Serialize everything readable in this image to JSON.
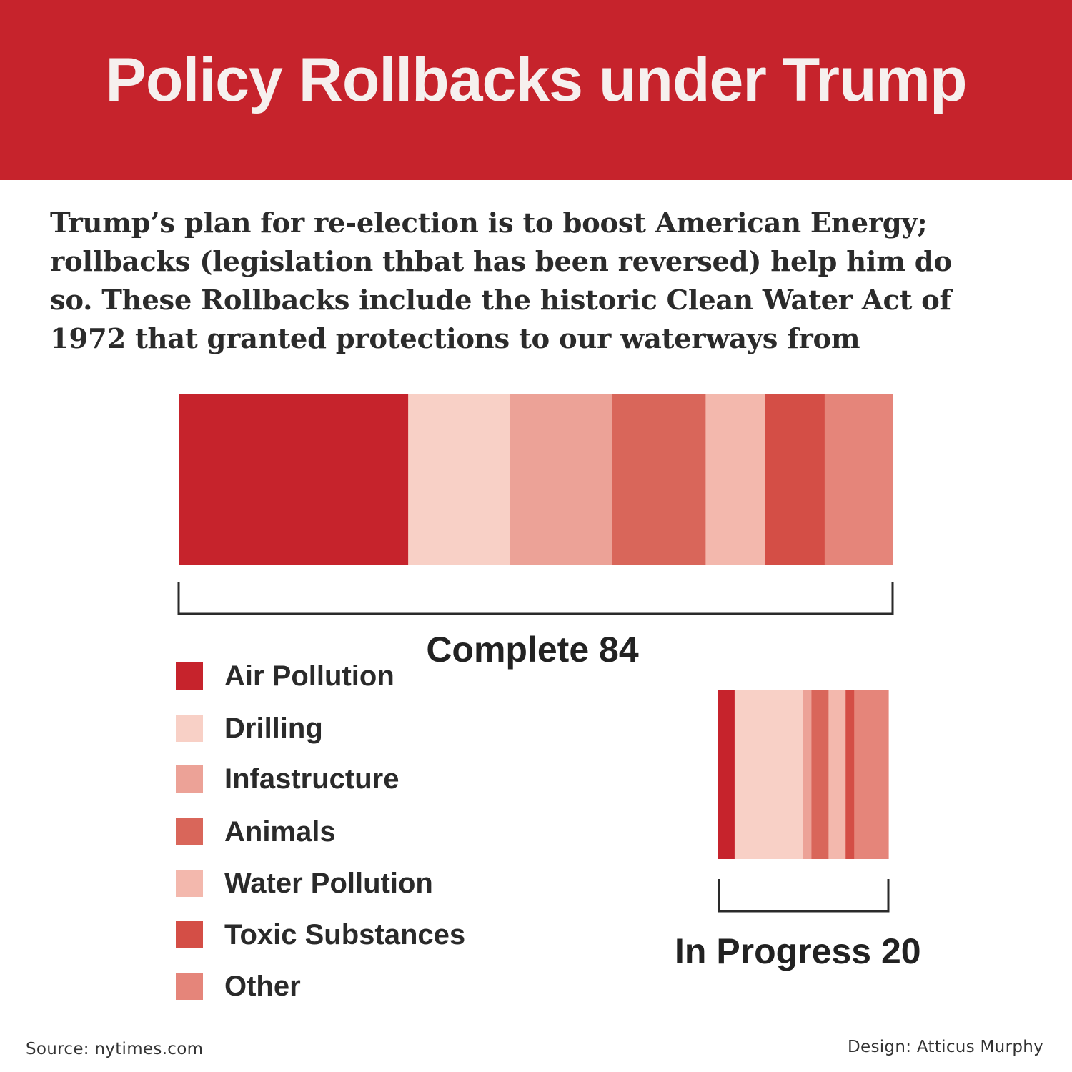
{
  "header": {
    "title": "Policy Rollbacks under Trump",
    "bg_color": "#c6232c"
  },
  "intro": {
    "text": "Trump’s plan for re-election is to boost American Energy; rollbacks (legislation thbat has been reversed) help him do so. These Rollbacks include the historic Clean Water Act of 1972 that granted protections to our waterways from"
  },
  "chart_data": {
    "type": "bar",
    "orientation": "horizontal-stacked",
    "categories": [
      "Air Pollution",
      "Drilling",
      "Infastructure",
      "Animals",
      "Water Pollution",
      "Toxic Substances",
      "Other"
    ],
    "colors": [
      "#c6232c",
      "#f8d0c6",
      "#eca297",
      "#d9665a",
      "#f3b8ad",
      "#d44e46",
      "#e5857a"
    ],
    "groups": [
      {
        "name": "Complete",
        "total": 84,
        "label": "Complete 84",
        "values": [
          27,
          12,
          12,
          11,
          7,
          7,
          8
        ]
      },
      {
        "name": "In Progress",
        "total": 20,
        "label": "In Progress 20",
        "values": [
          2,
          8,
          1,
          2,
          2,
          1,
          4
        ]
      }
    ]
  },
  "legend": {
    "items": [
      {
        "label": "Air Pollution",
        "color": "#c6232c"
      },
      {
        "label": "Drilling",
        "color": "#f8d0c6"
      },
      {
        "label": "Infastructure",
        "color": "#eca297"
      },
      {
        "label": "Animals",
        "color": "#d9665a"
      },
      {
        "label": "Water Pollution",
        "color": "#f3b8ad"
      },
      {
        "label": "Toxic Substances",
        "color": "#d44e46"
      },
      {
        "label": "Other",
        "color": "#e5857a"
      }
    ]
  },
  "footer": {
    "source": "Source: nytimes.com",
    "credit": "Design: Atticus Murphy"
  }
}
